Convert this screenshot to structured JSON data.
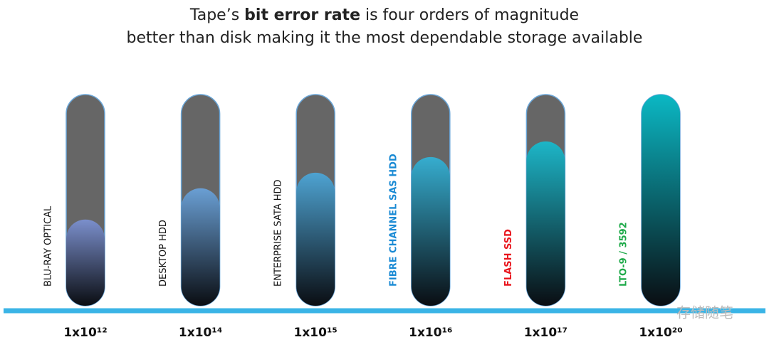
{
  "chart_data": {
    "type": "bar",
    "title": [
      "Tape’s ",
      "bit error rate",
      " is four orders of magnitude"
    ],
    "subtitle": "better than disk making it the most dependable storage available",
    "categories": [
      "BLU-RAY OPTICAL",
      "DESKTOP HDD",
      "ENTERPRISE SATA HDD",
      "FIBRE CHANNEL SAS HDD",
      "FLASH SSD",
      "LTO-9 / 3592"
    ],
    "category_colors": [
      "#111111",
      "#111111",
      "#111111",
      "#1a8ad4",
      "#e8141c",
      "#1faa4a"
    ],
    "values": [
      1000000000000.0,
      100000000000000.0,
      1000000000000000.0,
      1e+16,
      1e+17,
      1e+20
    ],
    "value_labels": [
      "1x10¹²",
      "1x10¹⁴",
      "1x10¹⁵",
      "1x10¹⁶",
      "1x10¹⁷",
      "1x10²⁰"
    ],
    "colors": [
      "#7b8fcc",
      "#6a9fd4",
      "#4ea3d2",
      "#36adcf",
      "#1db6c8",
      "#0bb8c4"
    ],
    "log": true,
    "ylim": [
      3000000,
      1e+20
    ],
    "watermark": "存储随笔"
  }
}
